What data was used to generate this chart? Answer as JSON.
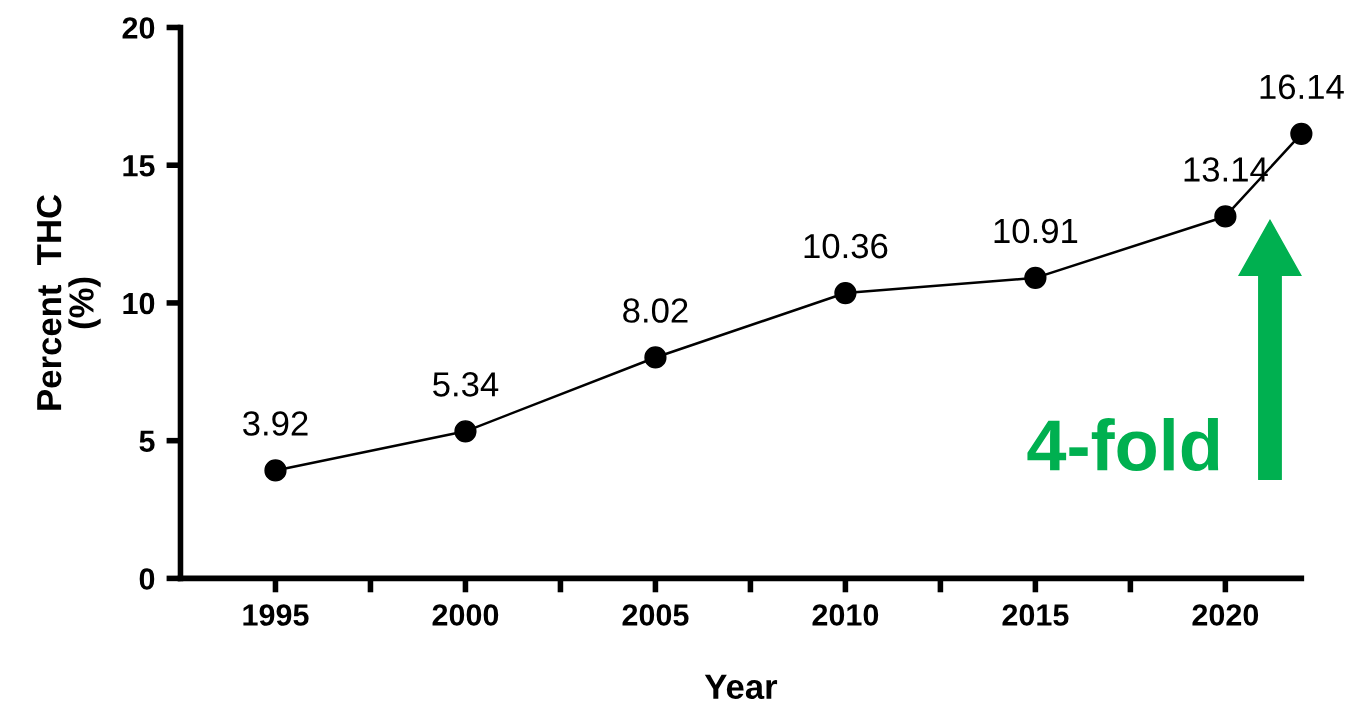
{
  "chart_data": {
    "type": "line",
    "xlabel": "Year",
    "ylabel": "Percent  THC\n(%)",
    "x": [
      1995,
      2000,
      2005,
      2010,
      2015,
      2020,
      2022
    ],
    "series": [
      {
        "color": "#000000",
        "values": [
          3.92,
          5.34,
          8.02,
          10.36,
          10.91,
          13.14,
          16.14
        ]
      }
    ],
    "xlim": [
      1992.5,
      2022
    ],
    "xticks": [
      1995,
      {
        "value": 1997.5,
        "label": null
      },
      2000,
      {
        "value": 2002.5,
        "label": null
      },
      2005,
      {
        "value": 2007.5,
        "label": null
      },
      2010,
      {
        "value": 2012.5,
        "label": null
      },
      2015,
      {
        "value": 2017.5,
        "label": null
      },
      2020
    ],
    "ylim": [
      0,
      20
    ],
    "yticks": [
      0,
      5,
      10,
      15,
      20
    ],
    "data_labels": true,
    "marker": "circle",
    "line_style": "solid",
    "grid": false,
    "annotations": [
      "4-fold"
    ]
  }
}
